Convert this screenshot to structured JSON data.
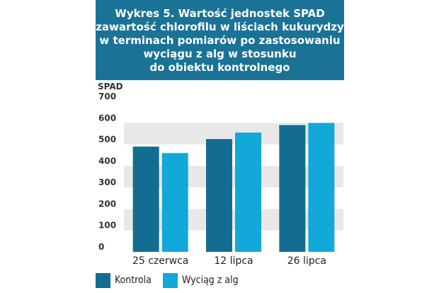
{
  "title_lines": [
    "Wykres 5. Wartość jednostek SPAD",
    "(zawartość chlorofilu w liściach kukurydzy)",
    "w terminach pomiarów po zastosowaniu",
    "wyciągu z alg w stosunku",
    "do obiektu kontrolnego"
  ],
  "colors": {
    "header_bg": "#1a7396",
    "kontrola": "#136d93",
    "wyciag": "#12a8d9",
    "band": "#e8e8e8",
    "axis_text": "#333333"
  },
  "chart_data": {
    "type": "bar",
    "title": "Wykres 5. Wartość jednostek SPAD (zawartość chlorofilu w liściach kukurydzy) w terminach pomiarów po zastosowaniu wyciągu z alg w stosunku do obiektu kontrolnego",
    "ylabel": "SPAD",
    "xlabel": "",
    "categories": [
      "25 czerwca",
      "12 lipca",
      "26 lipca"
    ],
    "series": [
      {
        "name": "Kontrola",
        "values": [
          490,
          525,
          590
        ]
      },
      {
        "name": "Wyciąg z alg",
        "values": [
          460,
          555,
          600
        ]
      }
    ],
    "ylim": [
      0,
      700
    ],
    "yticks": [
      0,
      100,
      200,
      300,
      400,
      500,
      600,
      700
    ],
    "grid": "alternating bands",
    "legend": "bottom-left"
  }
}
